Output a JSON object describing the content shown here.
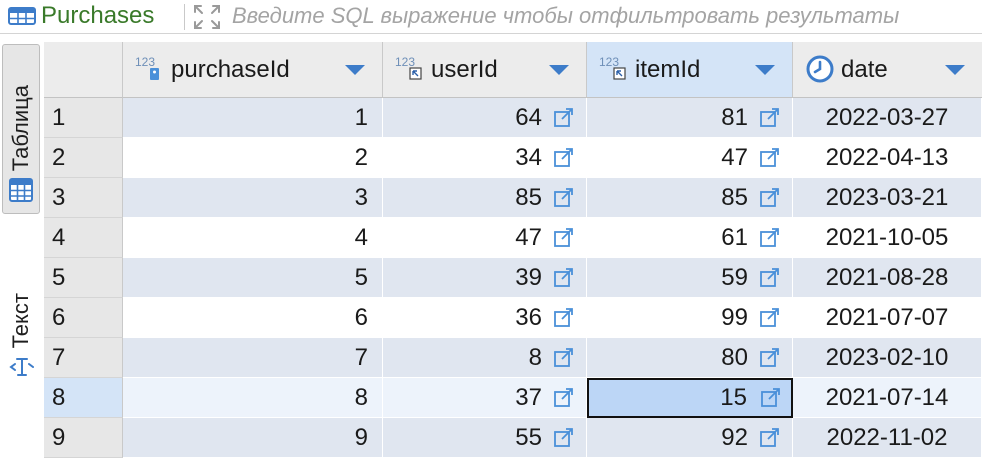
{
  "tab": {
    "title": "Purchases"
  },
  "filter": {
    "placeholder": "Введите SQL выражение чтобы отфильтровать результаты",
    "value": ""
  },
  "side_panel": {
    "table_tab": "Таблица",
    "text_tab": "Текст"
  },
  "columns": [
    {
      "name": "purchaseId",
      "type_badge": "123",
      "icon": "key-icon"
    },
    {
      "name": "userId",
      "type_badge": "123",
      "icon": "foreign-key-icon"
    },
    {
      "name": "itemId",
      "type_badge": "123",
      "icon": "foreign-key-icon"
    },
    {
      "name": "date",
      "type_badge": "",
      "icon": "clock-icon"
    }
  ],
  "rows": [
    {
      "n": "1",
      "purchaseId": "1",
      "userId": "64",
      "itemId": "81",
      "date": "2022-03-27"
    },
    {
      "n": "2",
      "purchaseId": "2",
      "userId": "34",
      "itemId": "47",
      "date": "2022-04-13"
    },
    {
      "n": "3",
      "purchaseId": "3",
      "userId": "85",
      "itemId": "85",
      "date": "2023-03-21"
    },
    {
      "n": "4",
      "purchaseId": "4",
      "userId": "47",
      "itemId": "61",
      "date": "2021-10-05"
    },
    {
      "n": "5",
      "purchaseId": "5",
      "userId": "39",
      "itemId": "59",
      "date": "2021-08-28"
    },
    {
      "n": "6",
      "purchaseId": "6",
      "userId": "36",
      "itemId": "99",
      "date": "2021-07-07"
    },
    {
      "n": "7",
      "purchaseId": "7",
      "userId": "8",
      "itemId": "80",
      "date": "2023-02-10"
    },
    {
      "n": "8",
      "purchaseId": "8",
      "userId": "37",
      "itemId": "15",
      "date": "2021-07-14"
    },
    {
      "n": "9",
      "purchaseId": "9",
      "userId": "55",
      "itemId": "92",
      "date": "2022-11-02"
    }
  ],
  "selection": {
    "row": "8",
    "column": "itemId"
  },
  "colors": {
    "accent": "#3a7a2a",
    "selected_cell": "#bcd6f6",
    "stripe": "#e0e6f0",
    "link_icon": "#4a90d9"
  }
}
